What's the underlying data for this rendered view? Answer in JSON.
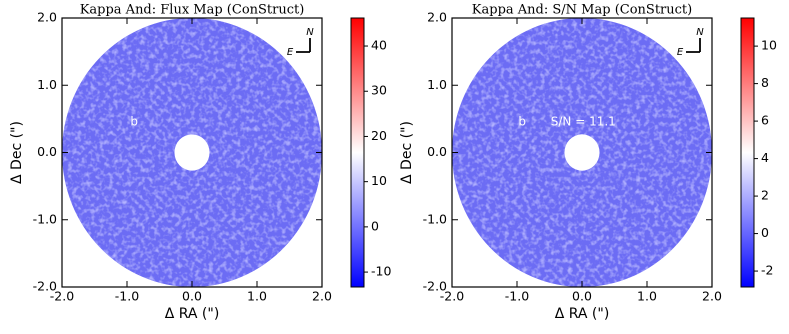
{
  "chart_data": [
    {
      "type": "image",
      "title": "Kappa And: Flux Map (ConStruct)",
      "xlabel": "Δ RA (\")",
      "ylabel": "Δ Dec (\")",
      "xlim": [
        -2,
        2
      ],
      "ylim": [
        -2,
        2
      ],
      "xticks": [
        {
          "value": -2,
          "label": "-2.0"
        },
        {
          "value": -1,
          "label": "-1.0"
        },
        {
          "value": 0,
          "label": "0.0"
        },
        {
          "value": 1,
          "label": "1.0"
        },
        {
          "value": 2,
          "label": "2.0"
        }
      ],
      "yticks": [
        {
          "value": -2,
          "label": "-2.0"
        },
        {
          "value": -1,
          "label": "-1.0"
        },
        {
          "value": 0,
          "label": "0.0"
        },
        {
          "value": 1,
          "label": "1.0"
        },
        {
          "value": 2,
          "label": "2.0"
        }
      ],
      "colorbar": {
        "clim": [
          -13.3,
          46.2
        ],
        "ticks": [
          -10,
          0,
          10,
          20,
          30,
          40
        ],
        "colors": [
          "#0000ff",
          "#ffffff",
          "#ff0000"
        ]
      },
      "annotations": [
        {
          "text": "b",
          "x": -0.89,
          "y": 0.45
        }
      ],
      "compass": {
        "north": "N",
        "east": "E"
      }
    },
    {
      "type": "image",
      "title": "Kappa And: S/N Map (ConStruct)",
      "xlabel": "Δ RA (\")",
      "ylabel": "Δ Dec (\")",
      "xlim": [
        -2,
        2
      ],
      "ylim": [
        -2,
        2
      ],
      "xticks": [
        {
          "value": -2,
          "label": "-2.0"
        },
        {
          "value": -1,
          "label": "-1.0"
        },
        {
          "value": 0,
          "label": "0.0"
        },
        {
          "value": 1,
          "label": "1.0"
        },
        {
          "value": 2,
          "label": "2.0"
        }
      ],
      "yticks": [
        {
          "value": -2,
          "label": "-2.0"
        },
        {
          "value": -1,
          "label": "-1.0"
        },
        {
          "value": 0,
          "label": "0.0"
        },
        {
          "value": 1,
          "label": "1.0"
        },
        {
          "value": 2,
          "label": "2.0"
        }
      ],
      "colorbar": {
        "clim": [
          -2.85,
          11.5
        ],
        "ticks": [
          -2,
          0,
          2,
          4,
          6,
          8,
          10
        ],
        "colors": [
          "#0000ff",
          "#ffffff",
          "#ff0000"
        ]
      },
      "annotations": [
        {
          "text": "b",
          "x": -0.92,
          "y": 0.45
        },
        {
          "text": "S/N = 11.1",
          "x": 0.02,
          "y": 0.45
        }
      ],
      "compass": {
        "north": "N",
        "east": "E"
      }
    }
  ]
}
